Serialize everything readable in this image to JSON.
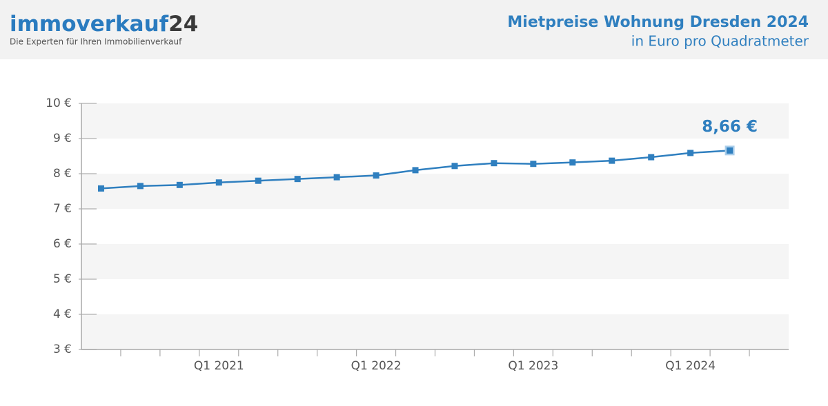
{
  "header": {
    "logo": "immoverkauf",
    "logo_suffix": "24",
    "tagline": "Die Experten für Ihren Immobilienverkauf"
  },
  "chart_data": {
    "type": "line",
    "title": "Mietpreise Wohnung Dresden 2024",
    "subtitle": "in Euro pro Quadratmeter",
    "categories": [
      null,
      null,
      null,
      "Q1 2021",
      null,
      null,
      null,
      "Q1 2022",
      null,
      null,
      null,
      "Q1 2023",
      null,
      null,
      null,
      "Q1 2024",
      null,
      null
    ],
    "series": [
      {
        "name": "Mietpreis",
        "color": "#2f7fbf",
        "values": [
          7.58,
          7.65,
          7.68,
          7.75,
          7.8,
          7.85,
          7.9,
          7.95,
          8.1,
          8.22,
          8.3,
          8.28,
          8.32,
          8.37,
          8.47,
          8.59,
          8.66,
          null
        ],
        "value_labels": [
          null,
          null,
          null,
          null,
          null,
          null,
          null,
          null,
          null,
          null,
          null,
          null,
          null,
          null,
          null,
          null,
          "8,66 €",
          null
        ]
      }
    ],
    "ylim": [
      3,
      10
    ],
    "yticks": [
      {
        "value": 3,
        "label": "3 €"
      },
      {
        "value": 4,
        "label": "4 €"
      },
      {
        "value": 5,
        "label": "5 €"
      },
      {
        "value": 6,
        "label": "6 €"
      },
      {
        "value": 7,
        "label": "7 €"
      },
      {
        "value": 8,
        "label": "8 €"
      },
      {
        "value": 9,
        "label": "9 €"
      },
      {
        "value": 10,
        "label": "10 €"
      }
    ],
    "grid": "bands"
  }
}
